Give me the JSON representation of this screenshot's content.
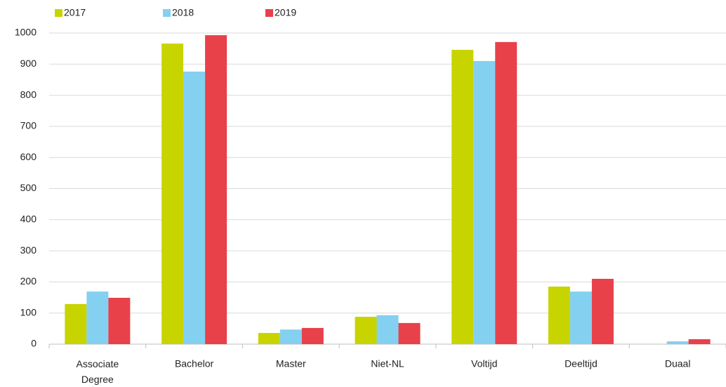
{
  "chart_data": {
    "type": "bar",
    "categories": [
      "Associate Degree",
      "Bachelor",
      "Master",
      "Niet-NL",
      "Voltijd",
      "Deeltijd",
      "Duaal"
    ],
    "series": [
      {
        "name": "2017",
        "color": "#c8d400",
        "values": [
          129,
          966,
          36,
          88,
          946,
          185,
          0
        ]
      },
      {
        "name": "2018",
        "color": "#84d0f0",
        "values": [
          169,
          876,
          47,
          93,
          910,
          169,
          9
        ]
      },
      {
        "name": "2019",
        "color": "#e8414a",
        "values": [
          149,
          993,
          52,
          68,
          971,
          210,
          16
        ]
      }
    ],
    "ylim": [
      0,
      1000
    ],
    "yticks": [
      0,
      100,
      200,
      300,
      400,
      500,
      600,
      700,
      800,
      900,
      1000
    ],
    "grid": true,
    "legend": "top"
  }
}
